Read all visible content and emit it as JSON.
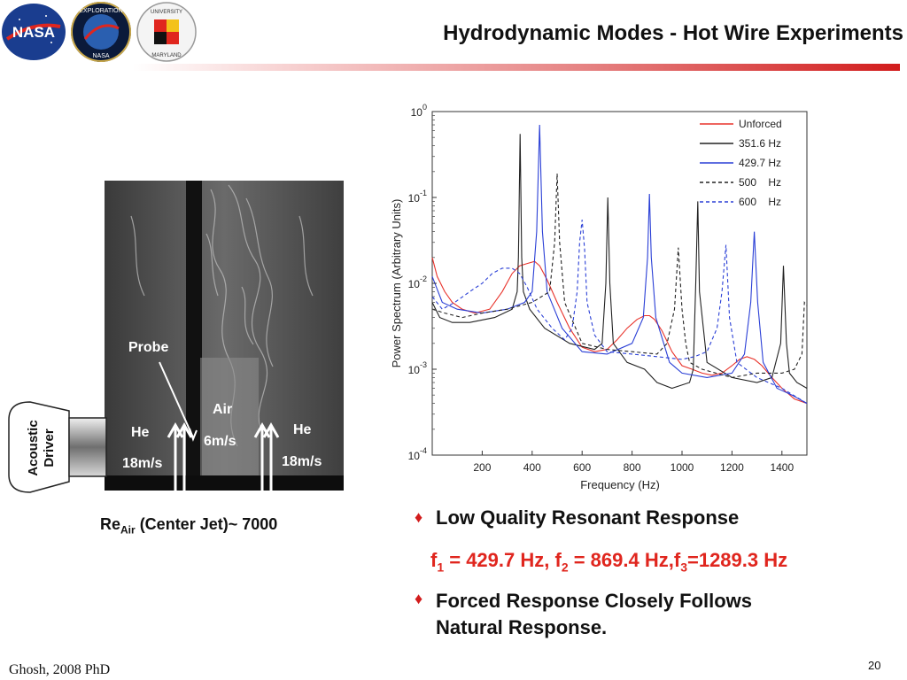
{
  "slide": {
    "title": "Hydrodynamic Modes - Hot Wire Experiments",
    "footer": "Ghosh, 2008 PhD",
    "page_number": "20",
    "accent_color": "#d21c1c"
  },
  "logos": {
    "nasa": "NASA",
    "exploration_top": "EXPLORATION",
    "exploration_bottom": "NASA",
    "umd_top": "UNIVERSITY",
    "umd_bottom": "MARYLAND"
  },
  "photo": {
    "probe_label": "Probe",
    "air_label": "Air",
    "air_speed": "6m/s",
    "he_left_label": "He",
    "he_left_speed": "18m/s",
    "he_right_label": "He",
    "he_right_speed": "18m/s",
    "driver_line1": "Acoustic",
    "driver_line2": "Driver"
  },
  "reynolds": {
    "prefix": "Re",
    "subscript": "Air",
    "suffix": " (Center Jet)~ 7000"
  },
  "bullets": [
    {
      "text": "Low Quality Resonant Response"
    },
    {
      "text_line1": "Forced Response Closely Follows",
      "text_line2": "Natural Response."
    }
  ],
  "frequencies": {
    "f1_label": "f",
    "f1_sub": "1",
    "f1_value": " = 429.7 Hz, f",
    "f2_sub": "2",
    "f2_value": " = 869.4 Hz,f",
    "f3_sub": "3",
    "f3_value": "=1289.3 Hz"
  },
  "chart_data": {
    "type": "line",
    "xlabel": "Frequency (Hz)",
    "ylabel": "Power Spectrum (Arbitrary Units)",
    "xlim": [
      0,
      1500
    ],
    "ylim": [
      0.0001,
      1
    ],
    "yscale": "log",
    "x_ticks": [
      200,
      400,
      600,
      800,
      1000,
      1200,
      1400
    ],
    "y_ticks": [
      {
        "value": 1,
        "base": "10",
        "exp": "0"
      },
      {
        "value": 0.1,
        "base": "10",
        "exp": "-1"
      },
      {
        "value": 0.01,
        "base": "10",
        "exp": "-2"
      },
      {
        "value": 0.001,
        "base": "10",
        "exp": "-3"
      },
      {
        "value": 0.0001,
        "base": "10",
        "exp": "-4"
      }
    ],
    "legend_position": "top-right",
    "grid": false,
    "series": [
      {
        "name": "Unforced",
        "color": "#e8322a",
        "dash": "solid",
        "x": [
          0,
          20,
          50,
          80,
          120,
          170,
          230,
          280,
          320,
          350,
          380,
          410,
          430,
          460,
          500,
          550,
          600,
          650,
          700,
          740,
          780,
          820,
          850,
          870,
          890,
          920,
          960,
          1000,
          1040,
          1080,
          1120,
          1160,
          1200,
          1230,
          1260,
          1290,
          1320,
          1360,
          1400,
          1450,
          1500
        ],
        "y": [
          0.02,
          0.012,
          0.008,
          0.006,
          0.005,
          0.0045,
          0.005,
          0.008,
          0.013,
          0.016,
          0.017,
          0.018,
          0.016,
          0.011,
          0.006,
          0.003,
          0.0018,
          0.0016,
          0.0017,
          0.0022,
          0.003,
          0.0038,
          0.0042,
          0.0042,
          0.0038,
          0.0028,
          0.0016,
          0.0011,
          0.001,
          0.0009,
          0.00085,
          0.0009,
          0.0011,
          0.0013,
          0.0014,
          0.0013,
          0.0011,
          0.0008,
          0.0006,
          0.00045,
          0.0004
        ]
      },
      {
        "name": "351.6 Hz",
        "color": "#222222",
        "dash": "solid",
        "x": [
          0,
          30,
          80,
          150,
          250,
          320,
          340,
          345,
          351.6,
          358,
          365,
          390,
          450,
          550,
          650,
          680,
          695,
          703,
          711,
          725,
          780,
          850,
          900,
          960,
          1030,
          1045,
          1055,
          1063,
          1070,
          1100,
          1200,
          1300,
          1360,
          1395,
          1406,
          1418,
          1430,
          1460,
          1500
        ],
        "y": [
          0.006,
          0.004,
          0.0035,
          0.0035,
          0.004,
          0.005,
          0.008,
          0.02,
          0.55,
          0.02,
          0.008,
          0.005,
          0.003,
          0.002,
          0.0017,
          0.002,
          0.01,
          0.1,
          0.01,
          0.002,
          0.0012,
          0.001,
          0.0007,
          0.0006,
          0.0007,
          0.001,
          0.01,
          0.09,
          0.008,
          0.0012,
          0.0008,
          0.0007,
          0.0008,
          0.002,
          0.016,
          0.002,
          0.0009,
          0.0007,
          0.0006
        ]
      },
      {
        "name": "429.7 Hz",
        "color": "#2a3fd6",
        "dash": "solid",
        "x": [
          0,
          40,
          100,
          200,
          300,
          370,
          400,
          418,
          429.7,
          441,
          460,
          520,
          600,
          700,
          800,
          845,
          862,
          869.4,
          877,
          895,
          950,
          1000,
          1100,
          1200,
          1250,
          1275,
          1289.3,
          1303,
          1325,
          1380,
          1440,
          1500
        ],
        "y": [
          0.012,
          0.006,
          0.005,
          0.0045,
          0.005,
          0.006,
          0.008,
          0.04,
          0.7,
          0.04,
          0.008,
          0.003,
          0.0016,
          0.0015,
          0.002,
          0.004,
          0.02,
          0.11,
          0.02,
          0.004,
          0.0012,
          0.0009,
          0.0008,
          0.0009,
          0.0015,
          0.006,
          0.04,
          0.006,
          0.0012,
          0.0006,
          0.0005,
          0.0004
        ]
      },
      {
        "name": "500    Hz",
        "color": "#222222",
        "dash": "dashed",
        "x": [
          0,
          50,
          120,
          200,
          300,
          400,
          470,
          490,
          500,
          510,
          530,
          600,
          700,
          800,
          900,
          940,
          970,
          985,
          1000,
          1015,
          1030,
          1080,
          1200,
          1300,
          1400,
          1450,
          1480,
          1490,
          1500
        ],
        "y": [
          0.005,
          0.0045,
          0.004,
          0.0045,
          0.005,
          0.006,
          0.008,
          0.03,
          0.19,
          0.03,
          0.006,
          0.002,
          0.0017,
          0.0016,
          0.0015,
          0.002,
          0.005,
          0.026,
          0.005,
          0.002,
          0.0012,
          0.001,
          0.0008,
          0.0009,
          0.0009,
          0.001,
          0.0015,
          0.006,
          0.0055
        ]
      },
      {
        "name": "600    Hz",
        "color": "#2a3fd6",
        "dash": "dashed",
        "x": [
          0,
          40,
          90,
          150,
          200,
          240,
          280,
          320,
          350,
          380,
          420,
          480,
          530,
          560,
          580,
          590,
          600,
          610,
          620,
          650,
          700,
          800,
          900,
          1000,
          1050,
          1100,
          1140,
          1160,
          1176,
          1190,
          1220,
          1300,
          1400,
          1500
        ],
        "y": [
          0.007,
          0.005,
          0.006,
          0.008,
          0.01,
          0.013,
          0.015,
          0.015,
          0.013,
          0.009,
          0.005,
          0.003,
          0.0022,
          0.003,
          0.008,
          0.03,
          0.055,
          0.025,
          0.006,
          0.0025,
          0.0016,
          0.0015,
          0.0014,
          0.0013,
          0.0014,
          0.0016,
          0.003,
          0.008,
          0.028,
          0.004,
          0.0012,
          0.0008,
          0.0006,
          0.0004
        ]
      }
    ]
  }
}
